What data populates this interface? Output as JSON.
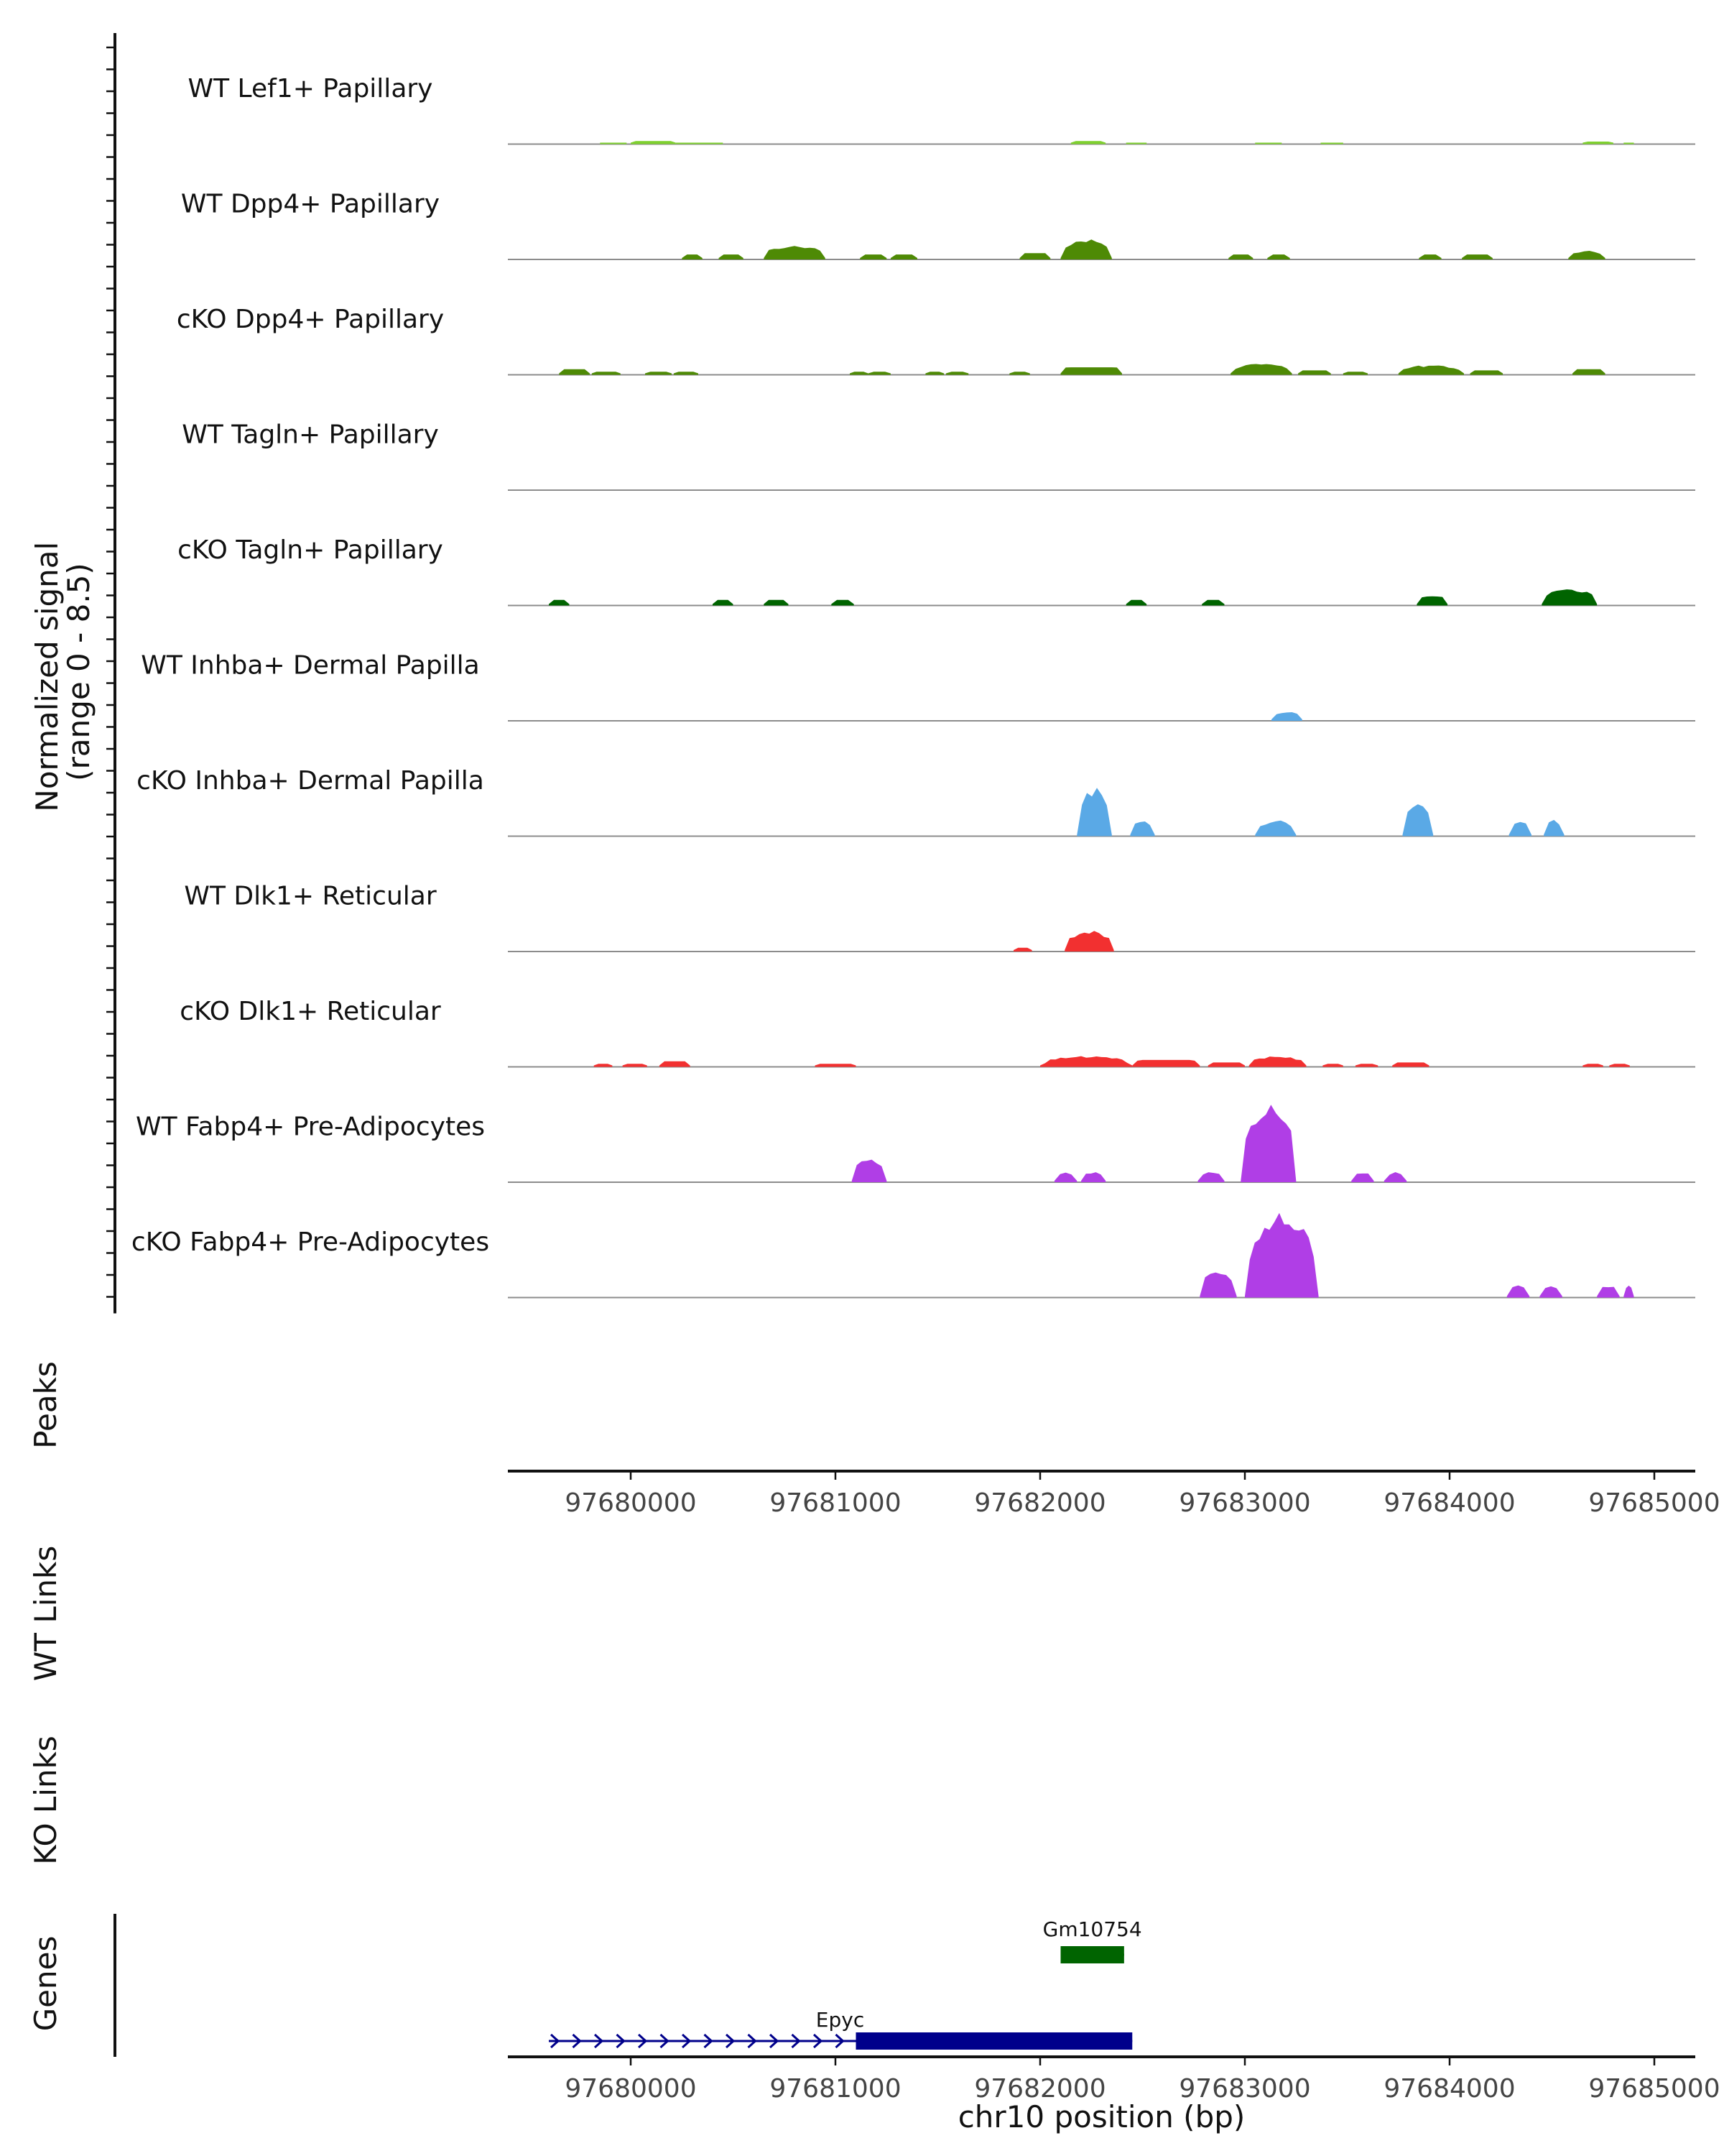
{
  "chart_data": {
    "type": "area",
    "title": "",
    "xlabel": "chr10 position (bp)",
    "xlim": [
      97679400,
      97685200
    ],
    "x_ticks": [
      97680000,
      97681000,
      97682000,
      97683000,
      97684000,
      97685000
    ],
    "x_tick_labels": [
      "97680000",
      "97681000",
      "97682000",
      "97683000",
      "97684000",
      "97685000"
    ],
    "coverage": {
      "ylabel_line1": "Normalized signal",
      "ylabel_line2": "(range 0 - 8.5)",
      "ylim": [
        0,
        8.5
      ],
      "track_ymax": 8.5,
      "series": [
        {
          "name": "WT Lef1+ Papillary",
          "color": "#7fd12f",
          "peaks": [
            {
              "start": 97679850,
              "end": 97679980,
              "height": 0.1
            },
            {
              "start": 97680000,
              "end": 97680220,
              "height": 0.25
            },
            {
              "start": 97680220,
              "end": 97680450,
              "height": 0.1
            },
            {
              "start": 97682150,
              "end": 97682320,
              "height": 0.25
            },
            {
              "start": 97682420,
              "end": 97682520,
              "height": 0.1
            },
            {
              "start": 97683050,
              "end": 97683180,
              "height": 0.1
            },
            {
              "start": 97683370,
              "end": 97683480,
              "height": 0.1
            },
            {
              "start": 97684650,
              "end": 97684800,
              "height": 0.2
            },
            {
              "start": 97684850,
              "end": 97684900,
              "height": 0.1
            }
          ]
        },
        {
          "name": "WT Dpp4+ Papillary",
          "color": "#4e8a05",
          "peaks": [
            {
              "start": 97680250,
              "end": 97680350,
              "height": 0.4
            },
            {
              "start": 97680430,
              "end": 97680550,
              "height": 0.4
            },
            {
              "start": 97680650,
              "end": 97680950,
              "height": 1.2
            },
            {
              "start": 97681120,
              "end": 97681250,
              "height": 0.4
            },
            {
              "start": 97681270,
              "end": 97681400,
              "height": 0.4
            },
            {
              "start": 97681900,
              "end": 97682050,
              "height": 0.5
            },
            {
              "start": 97682100,
              "end": 97682350,
              "height": 1.7
            },
            {
              "start": 97682920,
              "end": 97683040,
              "height": 0.4
            },
            {
              "start": 97683110,
              "end": 97683220,
              "height": 0.4
            },
            {
              "start": 97683850,
              "end": 97683960,
              "height": 0.4
            },
            {
              "start": 97684060,
              "end": 97684210,
              "height": 0.4
            },
            {
              "start": 97684580,
              "end": 97684760,
              "height": 0.7
            }
          ]
        },
        {
          "name": "cKO Dpp4+ Papillary",
          "color": "#4e8a05",
          "peaks": [
            {
              "start": 97679650,
              "end": 97679800,
              "height": 0.45
            },
            {
              "start": 97679810,
              "end": 97679950,
              "height": 0.25
            },
            {
              "start": 97680070,
              "end": 97680200,
              "height": 0.25
            },
            {
              "start": 97680210,
              "end": 97680330,
              "height": 0.25
            },
            {
              "start": 97681070,
              "end": 97681160,
              "height": 0.25
            },
            {
              "start": 97681160,
              "end": 97681270,
              "height": 0.25
            },
            {
              "start": 97681440,
              "end": 97681530,
              "height": 0.25
            },
            {
              "start": 97681540,
              "end": 97681650,
              "height": 0.25
            },
            {
              "start": 97681850,
              "end": 97681950,
              "height": 0.25
            },
            {
              "start": 97682100,
              "end": 97682400,
              "height": 0.6
            },
            {
              "start": 97682930,
              "end": 97683230,
              "height": 0.9
            },
            {
              "start": 97683260,
              "end": 97683420,
              "height": 0.35
            },
            {
              "start": 97683480,
              "end": 97683600,
              "height": 0.25
            },
            {
              "start": 97683750,
              "end": 97684070,
              "height": 0.8
            },
            {
              "start": 97684100,
              "end": 97684260,
              "height": 0.35
            },
            {
              "start": 97684600,
              "end": 97684760,
              "height": 0.45
            }
          ]
        },
        {
          "name": "WT Tagln+ Papillary",
          "color": "#006400",
          "peaks": []
        },
        {
          "name": "cKO Tagln+ Papillary",
          "color": "#006400",
          "peaks": [
            {
              "start": 97679600,
              "end": 97679700,
              "height": 0.45
            },
            {
              "start": 97680400,
              "end": 97680500,
              "height": 0.45
            },
            {
              "start": 97680650,
              "end": 97680770,
              "height": 0.45
            },
            {
              "start": 97680980,
              "end": 97681090,
              "height": 0.45
            },
            {
              "start": 97682420,
              "end": 97682520,
              "height": 0.45
            },
            {
              "start": 97682790,
              "end": 97682900,
              "height": 0.45
            },
            {
              "start": 97683840,
              "end": 97683990,
              "height": 0.9
            },
            {
              "start": 97684450,
              "end": 97684720,
              "height": 1.4
            }
          ]
        },
        {
          "name": "WT Inhba+ Dermal Papilla",
          "color": "#5aa9e6",
          "peaks": [
            {
              "start": 97683130,
              "end": 97683280,
              "height": 0.8
            }
          ]
        },
        {
          "name": "cKO Inhba+ Dermal Papilla",
          "color": "#5aa9e6",
          "peaks": [
            {
              "start": 97682180,
              "end": 97682350,
              "height": 4.0
            },
            {
              "start": 97682440,
              "end": 97682560,
              "height": 1.3
            },
            {
              "start": 97683050,
              "end": 97683250,
              "height": 1.3
            },
            {
              "start": 97683770,
              "end": 97683920,
              "height": 2.6
            },
            {
              "start": 97684290,
              "end": 97684400,
              "height": 1.3
            },
            {
              "start": 97684460,
              "end": 97684560,
              "height": 1.3
            }
          ]
        },
        {
          "name": "WT Dlk1+ Reticular",
          "color": "#f23030",
          "peaks": [
            {
              "start": 97681870,
              "end": 97681960,
              "height": 0.3
            },
            {
              "start": 97682120,
              "end": 97682360,
              "height": 1.7
            }
          ]
        },
        {
          "name": "cKO Dlk1+ Reticular",
          "color": "#f23030",
          "peaks": [
            {
              "start": 97679820,
              "end": 97679910,
              "height": 0.25
            },
            {
              "start": 97679960,
              "end": 97680080,
              "height": 0.25
            },
            {
              "start": 97680140,
              "end": 97680290,
              "height": 0.45
            },
            {
              "start": 97680900,
              "end": 97681100,
              "height": 0.25
            },
            {
              "start": 97682000,
              "end": 97682450,
              "height": 0.9
            },
            {
              "start": 97682450,
              "end": 97682780,
              "height": 0.55
            },
            {
              "start": 97682820,
              "end": 97683000,
              "height": 0.35
            },
            {
              "start": 97683020,
              "end": 97683300,
              "height": 0.9
            },
            {
              "start": 97683380,
              "end": 97683480,
              "height": 0.25
            },
            {
              "start": 97683540,
              "end": 97683650,
              "height": 0.25
            },
            {
              "start": 97683720,
              "end": 97683900,
              "height": 0.35
            },
            {
              "start": 97684650,
              "end": 97684750,
              "height": 0.25
            },
            {
              "start": 97684780,
              "end": 97684880,
              "height": 0.25
            }
          ]
        },
        {
          "name": "WT Fabp4+ Pre-Adipocytes",
          "color": "#b03ee6",
          "peaks": [
            {
              "start": 97681080,
              "end": 97681250,
              "height": 1.9
            },
            {
              "start": 97682070,
              "end": 97682180,
              "height": 0.85
            },
            {
              "start": 97682200,
              "end": 97682320,
              "height": 0.85
            },
            {
              "start": 97682770,
              "end": 97682900,
              "height": 0.85
            },
            {
              "start": 97682980,
              "end": 97683250,
              "height": 6.4
            },
            {
              "start": 97683520,
              "end": 97683630,
              "height": 0.85
            },
            {
              "start": 97683680,
              "end": 97683790,
              "height": 0.85
            }
          ]
        },
        {
          "name": "cKO Fabp4+ Pre-Adipocytes",
          "color": "#b03ee6",
          "peaks": [
            {
              "start": 97682780,
              "end": 97682960,
              "height": 2.3
            },
            {
              "start": 97683000,
              "end": 97683360,
              "height": 7.1
            },
            {
              "start": 97684280,
              "end": 97684390,
              "height": 1.0
            },
            {
              "start": 97684440,
              "end": 97684550,
              "height": 1.0
            },
            {
              "start": 97684720,
              "end": 97684830,
              "height": 1.0
            },
            {
              "start": 97684850,
              "end": 97684900,
              "height": 1.0
            }
          ]
        }
      ]
    },
    "panels": {
      "peaks_label": "Peaks",
      "wt_links_label": "WT Links",
      "ko_links_label": "KO Links",
      "genes_label": "Genes"
    },
    "genes": [
      {
        "name": "Gm10754",
        "start": 97682100,
        "end": 97682410,
        "row": 1,
        "color": "#006400",
        "strand": "+",
        "has_intron_line": false
      },
      {
        "name": "Epyc",
        "start": 97679600,
        "end": 97682450,
        "exon_start": 97681100,
        "exon_end": 97682450,
        "row": 2,
        "color": "#00008b",
        "strand": "+",
        "has_intron_line": true
      }
    ]
  }
}
